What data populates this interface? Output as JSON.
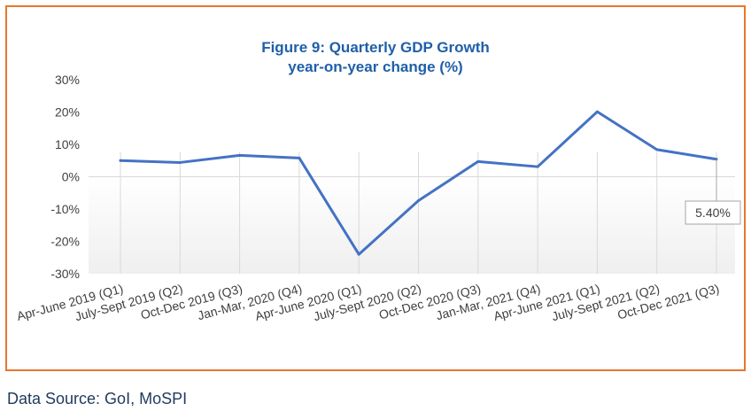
{
  "chart_data": {
    "type": "line",
    "title": "Figure 9: Quarterly GDP Growth",
    "subtitle": "year-on-year change (%)",
    "xlabel": "",
    "ylabel": "",
    "categories": [
      "Apr-June 2019 (Q1)",
      "July-Sept 2019 (Q2)",
      "Oct-Dec 2019 (Q3)",
      "Jan-Mar, 2020 (Q4)",
      "Apr-June 2020 (Q1)",
      "July-Sept 2020 (Q2)",
      "Oct-Dec 2020 (Q3)",
      "Jan-Mar, 2021 (Q4)",
      "Apr-June 2021 (Q1)",
      "July-Sept 2021 (Q2)",
      "Oct-Dec 2021 (Q3)"
    ],
    "series": [
      {
        "values": [
          5.0,
          4.4,
          6.6,
          5.8,
          -24.0,
          -7.4,
          4.7,
          3.1,
          20.1,
          8.4,
          5.4
        ],
        "color": "#4472c4"
      }
    ],
    "ylim": [
      -30,
      30
    ],
    "yticks": [
      "30%",
      "20%",
      "10%",
      "0%",
      "-10%",
      "-20%",
      "-30%"
    ],
    "grid": "vertical",
    "annotation": {
      "label": "5.40%",
      "category_index": 10
    }
  },
  "source": "Data Source: GoI, MoSPI",
  "colors": {
    "frame": "#e8762d",
    "title": "#1f5fa8",
    "line": "#4472c4"
  }
}
